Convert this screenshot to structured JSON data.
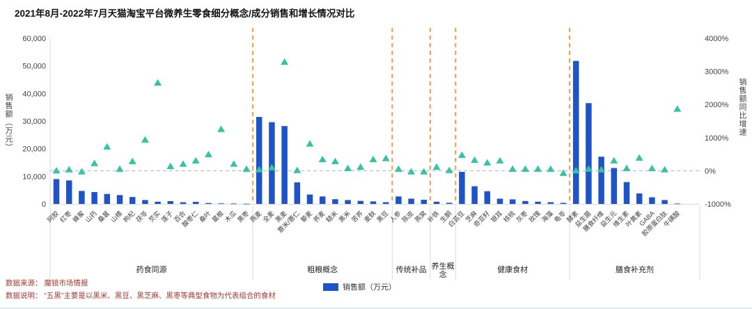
{
  "title": "2021年8月-2022年7月天猫淘宝平台微养生零食细分概念/成分销售和增长情况对比",
  "colors": {
    "bar_blue": "#1F54C9",
    "triangle_teal": "#34C3A3",
    "separator_orange": "#F5A259",
    "zero_line_grey": "#BFBFBF",
    "axis_grey": "#D9D9D9",
    "tick_text": "#404040",
    "footnote_red": "#A33B32",
    "bottom_divider": "#DCE6F1"
  },
  "legend": {
    "items": [
      {
        "label": "销售额（万元）",
        "color": "#1F54C9",
        "shape": "square"
      }
    ]
  },
  "footnotes": [
    "数据来源： 魔镜市场情报",
    "数据说明： “五黑”主要是以黑米、黑豆、黑芝麻、黑枣等典型食物为代表组合的食材"
  ],
  "chart_data": {
    "type": "bar",
    "subtype": "combo: bars (sales, left axis) + triangle markers (YoY growth %, right axis), grouped by concept with orange dashed separators",
    "title": "2021年8月-2022年7月天猫淘宝平台微养生零食细分概念/成分销售和增长情况对比",
    "left_axis": {
      "title": "销售额（万元）",
      "min": 0,
      "max": 60000,
      "tick_step": 10000,
      "ticks": [
        "0",
        "10,000",
        "20,000",
        "30,000",
        "40,000",
        "50,000",
        "60,000"
      ]
    },
    "right_axis": {
      "title": "销售额同比增速",
      "min": -1000,
      "max": 4000,
      "tick_step": 1000,
      "ticks": [
        "4000%",
        "3000%",
        "2000%",
        "1000%",
        "0%",
        "-1000%"
      ],
      "zero_line": "grey dashed"
    },
    "series": [
      {
        "name": "销售额（万元）",
        "type": "bar",
        "color": "#1F54C9",
        "axis": "left"
      },
      {
        "name": "销售额同比增速",
        "type": "triangle",
        "color": "#34C3A3",
        "axis": "right"
      }
    ],
    "groups": [
      {
        "name": "药食同源",
        "items": [
          {
            "label": "阿胶",
            "sales": 9000,
            "growth": 0
          },
          {
            "label": "红枣",
            "sales": 8500,
            "growth": 30
          },
          {
            "label": "蜂蜜",
            "sales": 4700,
            "growth": -30
          },
          {
            "label": "山药",
            "sales": 4300,
            "growth": 220
          },
          {
            "label": "桑葚",
            "sales": 3600,
            "growth": 720
          },
          {
            "label": "山楂",
            "sales": 3200,
            "growth": 50
          },
          {
            "label": "枸杞",
            "sales": 2500,
            "growth": 280
          },
          {
            "label": "茯苓",
            "sales": 1400,
            "growth": 930
          },
          {
            "label": "芡实",
            "sales": 800,
            "growth": 2650
          },
          {
            "label": "莲子",
            "sales": 1000,
            "growth": 130
          },
          {
            "label": "百合",
            "sales": 600,
            "growth": 200
          },
          {
            "label": "酸枣仁",
            "sales": 750,
            "growth": 300
          },
          {
            "label": "桑叶",
            "sales": 330,
            "growth": 490
          },
          {
            "label": "葛根",
            "sales": 200,
            "growth": 1250
          },
          {
            "label": "木瓜",
            "sales": 150,
            "growth": 200
          },
          {
            "label": "黑枣",
            "sales": 100,
            "growth": 50
          }
        ]
      },
      {
        "name": "粗粮概念",
        "items": [
          {
            "label": "燕麦",
            "sales": 31500,
            "growth": 30
          },
          {
            "label": "全麦",
            "sales": 29600,
            "growth": 90
          },
          {
            "label": "黑麦",
            "sales": 28200,
            "growth": 3280
          },
          {
            "label": "薏米/薏仁",
            "sales": 7800,
            "growth": 10
          },
          {
            "label": "藜麦",
            "sales": 3400,
            "growth": 810
          },
          {
            "label": "荞麦",
            "sales": 2700,
            "growth": 340
          },
          {
            "label": "糙米",
            "sales": 1700,
            "growth": 280
          },
          {
            "label": "黑米",
            "sales": 1400,
            "growth": 70
          },
          {
            "label": "苦荞",
            "sales": 1100,
            "growth": 110
          },
          {
            "label": "麦麸",
            "sales": 900,
            "growth": 340
          },
          {
            "label": "黑豆",
            "sales": 630,
            "growth": 370
          }
        ]
      },
      {
        "name": "传统补品",
        "items": [
          {
            "label": "人参",
            "sales": 2700,
            "growth": 50
          },
          {
            "label": "陈皮",
            "sales": 1900,
            "growth": -30
          },
          {
            "label": "燕窝",
            "sales": 1500,
            "growth": -30
          }
        ]
      },
      {
        "name": "养生概念",
        "items": [
          {
            "label": "补铁",
            "sales": 800,
            "growth": 110
          },
          {
            "label": "生酮",
            "sales": 400,
            "growth": 10
          }
        ]
      },
      {
        "name": "健康食材",
        "items": [
          {
            "label": "白芸豆",
            "sales": 11600,
            "growth": 470
          },
          {
            "label": "芝麻",
            "sales": 6400,
            "growth": 320
          },
          {
            "label": "奇亚籽",
            "sales": 4600,
            "growth": 240
          },
          {
            "label": "银耳",
            "sales": 1900,
            "growth": 300
          },
          {
            "label": "核桃",
            "sales": 1650,
            "growth": 50
          },
          {
            "label": "灰枣",
            "sales": 1050,
            "growth": 50
          },
          {
            "label": "玫瑰",
            "sales": 800,
            "growth": 50
          },
          {
            "label": "海藻",
            "sales": 630,
            "growth": 50
          },
          {
            "label": "龟苓",
            "sales": 380,
            "growth": -75
          }
        ]
      },
      {
        "name": "膳食补充剂",
        "items": [
          {
            "label": "酵素",
            "sales": 51800,
            "growth": 0
          },
          {
            "label": "益生菌",
            "sales": 36500,
            "growth": 50
          },
          {
            "label": "膳食纤维",
            "sales": 17100,
            "growth": 30
          },
          {
            "label": "益生元",
            "sales": 13000,
            "growth": 300
          },
          {
            "label": "维生素",
            "sales": 7900,
            "growth": 70
          },
          {
            "label": "叶黄素",
            "sales": 3800,
            "growth": 385
          },
          {
            "label": "GABA",
            "sales": 2400,
            "growth": 70
          },
          {
            "label": "胶原蛋白肽",
            "sales": 1400,
            "growth": 30
          },
          {
            "label": "牛磺酸",
            "sales": 150,
            "growth": 1860
          }
        ]
      }
    ]
  }
}
